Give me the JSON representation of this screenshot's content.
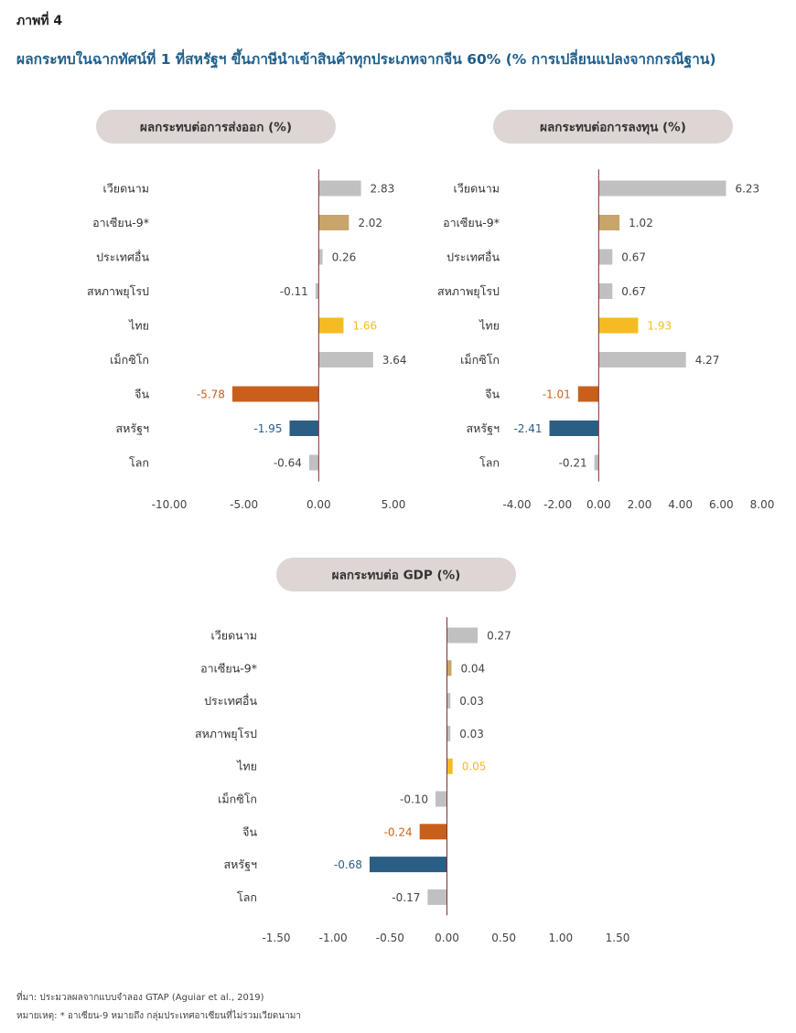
{
  "figure_label": "ภาพที่ 4",
  "figure_title": "ผลกระทบในฉากทัศน์ที่ 1 ที่สหรัฐฯ ขึ้นภาษีนำเข้าสินค้าทุกประเภทจากจีน 60% (% การเปลี่ยนแปลงจากกรณีฐาน)",
  "colors": {
    "gray": "#c0c0c0",
    "gold": "#c9a46b",
    "yellow": "#f5bb22",
    "orange": "#c8601c",
    "blue": "#2b5e84",
    "pill": "#ddd6d4",
    "axis": "#7a3030"
  },
  "chart_data": [
    {
      "type": "bar",
      "orientation": "horizontal",
      "title": "ผลกระทบต่อการส่งออก (%)",
      "categories": [
        "เวียดนาม",
        "อาเซียน-9*",
        "ประเทศอื่น",
        "สหภาพยุโรป",
        "ไทย",
        "เม็กซิโก",
        "จีน",
        "สหรัฐฯ",
        "โลก"
      ],
      "values": [
        2.83,
        2.02,
        0.26,
        -0.11,
        1.66,
        3.64,
        -5.78,
        -1.95,
        -0.64
      ],
      "value_labels": [
        "2.83",
        "2.02",
        "0.26",
        "-0.11",
        "1.66",
        "3.64",
        "-5.78",
        "-1.95",
        "-0.64"
      ],
      "bar_colors": [
        "gray",
        "gold",
        "gray",
        "gray",
        "yellow",
        "gray",
        "orange",
        "blue",
        "gray"
      ],
      "xlim": [
        -10,
        5
      ],
      "ticks": [
        -10,
        -5,
        0,
        5
      ],
      "tick_labels": [
        "-10.00",
        "-5.00",
        "0.00",
        "5.00"
      ]
    },
    {
      "type": "bar",
      "orientation": "horizontal",
      "title": "ผลกระทบต่อการลงทุน (%)",
      "categories": [
        "เวียดนาม",
        "อาเซียน-9*",
        "ประเทศอื่น",
        "สหภาพยุโรป",
        "ไทย",
        "เม็กซิโก",
        "จีน",
        "สหรัฐฯ",
        "โลก"
      ],
      "values": [
        6.23,
        1.02,
        0.67,
        0.67,
        1.93,
        4.27,
        -1.01,
        -2.41,
        -0.21
      ],
      "value_labels": [
        "6.23",
        "1.02",
        "0.67",
        "0.67",
        "1.93",
        "4.27",
        "-1.01",
        "-2.41",
        "-0.21"
      ],
      "bar_colors": [
        "gray",
        "gold",
        "gray",
        "gray",
        "yellow",
        "gray",
        "orange",
        "blue",
        "gray"
      ],
      "xlim": [
        -4,
        8
      ],
      "ticks": [
        -4,
        -2,
        0,
        2,
        4,
        6,
        8
      ],
      "tick_labels": [
        "-4.00",
        "-2.00",
        "0.00",
        "2.00",
        "4.00",
        "6.00",
        "8.00"
      ]
    },
    {
      "type": "bar",
      "orientation": "horizontal",
      "title": "ผลกระทบต่อ GDP (%)",
      "categories": [
        "เวียดนาม",
        "อาเซียน-9*",
        "ประเทศอื่น",
        "สหภาพยุโรป",
        "ไทย",
        "เม็กซิโก",
        "จีน",
        "สหรัฐฯ",
        "โลก"
      ],
      "values": [
        0.27,
        0.04,
        0.03,
        0.03,
        0.05,
        -0.1,
        -0.24,
        -0.68,
        -0.17
      ],
      "value_labels": [
        "0.27",
        "0.04",
        "0.03",
        "0.03",
        "0.05",
        "-0.10",
        "-0.24",
        "-0.68",
        "-0.17"
      ],
      "bar_colors": [
        "gray",
        "gold",
        "gray",
        "gray",
        "yellow",
        "gray",
        "orange",
        "blue",
        "gray"
      ],
      "xlim": [
        -1.5,
        1.5
      ],
      "ticks": [
        -1.5,
        -1,
        -0.5,
        0,
        0.5,
        1,
        1.5
      ],
      "tick_labels": [
        "-1.50",
        "-1.00",
        "-0.50",
        "0.00",
        "0.50",
        "1.00",
        "1.50"
      ]
    }
  ],
  "footer": {
    "source": "ที่มา: ประมวลผลจากแบบจำลอง GTAP (Aguiar et al., 2019)",
    "note": "หมายเหตุ: * อาเซียน-9 หมายถึง กลุ่มประเทศอาเซียนที่ไม่รวมเวียดนามา"
  }
}
